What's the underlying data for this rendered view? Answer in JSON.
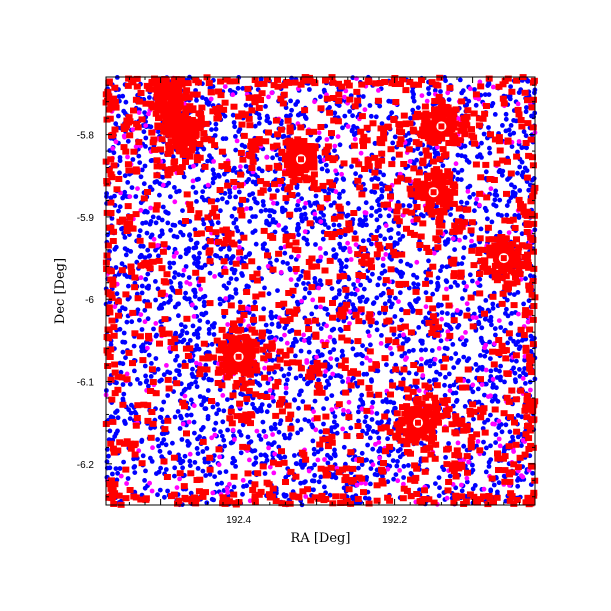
{
  "chart_data": {
    "type": "scatter",
    "title": "",
    "xlabel": "RA [Deg]",
    "ylabel": "Dec [Deg]",
    "xlim": [
      192.57,
      192.02
    ],
    "ylim": [
      -6.25,
      -5.73
    ],
    "x_inverted": true,
    "x_ticks": [
      192.4,
      192.2
    ],
    "x_tick_labels": [
      "192.4",
      "192.2"
    ],
    "y_ticks": [
      -5.8,
      -5.9,
      -6.0,
      -6.1,
      -6.2
    ],
    "y_tick_labels": [
      "-5.8",
      "-5.9",
      "-6",
      "-6.1",
      "-6.2"
    ],
    "grid": false,
    "legend": "none",
    "series": [
      {
        "color": "#0000ff",
        "marker": "dot",
        "density": "uniform",
        "approx_count": 3200
      },
      {
        "color": "#ff00ff",
        "marker": "dot",
        "density": "uniform",
        "approx_count": 500
      },
      {
        "color": "#ff0000",
        "marker": "square",
        "density": "clustered",
        "approx_count": 1400,
        "bright_sources": [
          {
            "x": 192.32,
            "y": -5.83,
            "label": "",
            "hollow": true
          },
          {
            "x": 192.14,
            "y": -5.79,
            "label": "",
            "hollow": true
          },
          {
            "x": 192.15,
            "y": -5.87,
            "label": "",
            "hollow": true
          },
          {
            "x": 192.06,
            "y": -5.95,
            "label": "",
            "hollow": true
          },
          {
            "x": 192.4,
            "y": -6.07,
            "label": "",
            "hollow": true
          },
          {
            "x": 192.17,
            "y": -6.15,
            "label": "",
            "hollow": true
          },
          {
            "x": 192.49,
            "y": -5.76,
            "label": "",
            "hollow": false
          },
          {
            "x": 192.47,
            "y": -5.8,
            "label": "",
            "hollow": false
          }
        ]
      }
    ]
  }
}
